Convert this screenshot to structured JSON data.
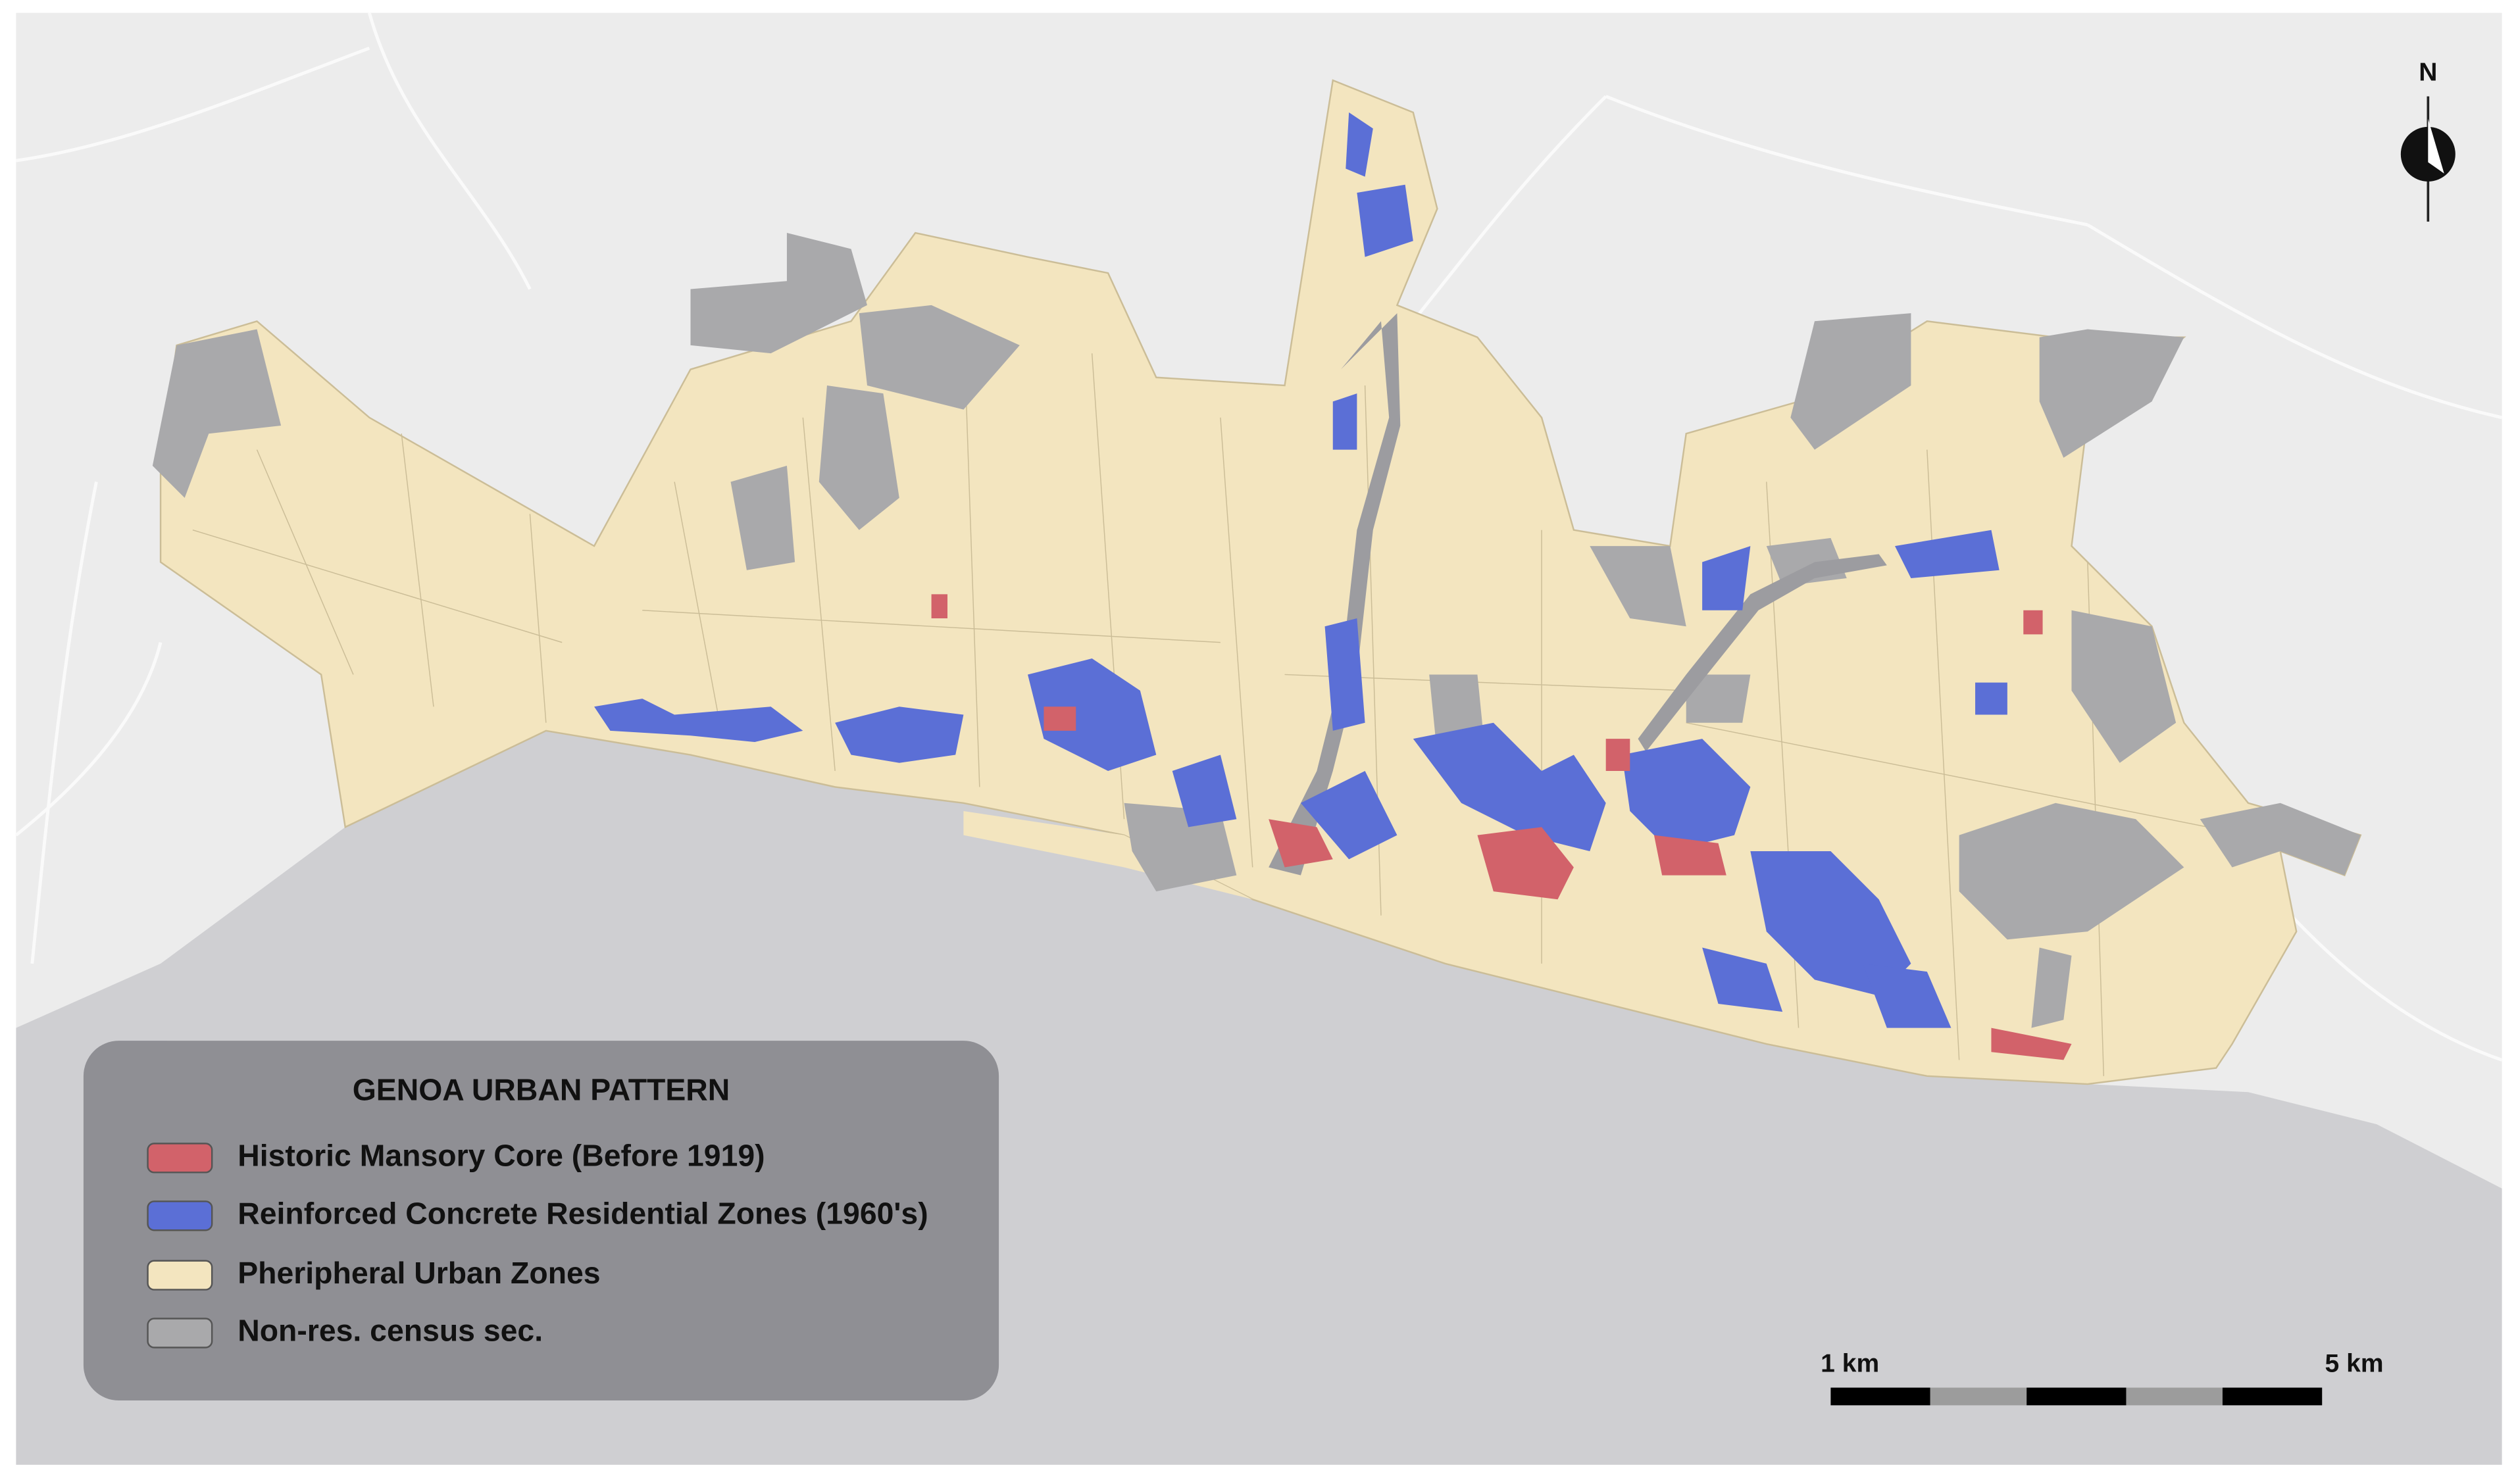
{
  "legend": {
    "title": "GENOA URBAN PATTERN",
    "items": [
      {
        "label": "Historic Mansory Core (Before 1919)",
        "color": "#d2626a"
      },
      {
        "label": "Reinforced Concrete Residential Zones (1960's)",
        "color": "#5b6fd6"
      },
      {
        "label": "Pheripheral Urban Zones",
        "color": "#f3e5bf"
      },
      {
        "label": "Non-res. census sec.",
        "color": "#a9a9ab"
      }
    ]
  },
  "scale_bar": {
    "labels": [
      "1 km",
      "5 km"
    ]
  },
  "north_arrow": {
    "label": "N"
  }
}
